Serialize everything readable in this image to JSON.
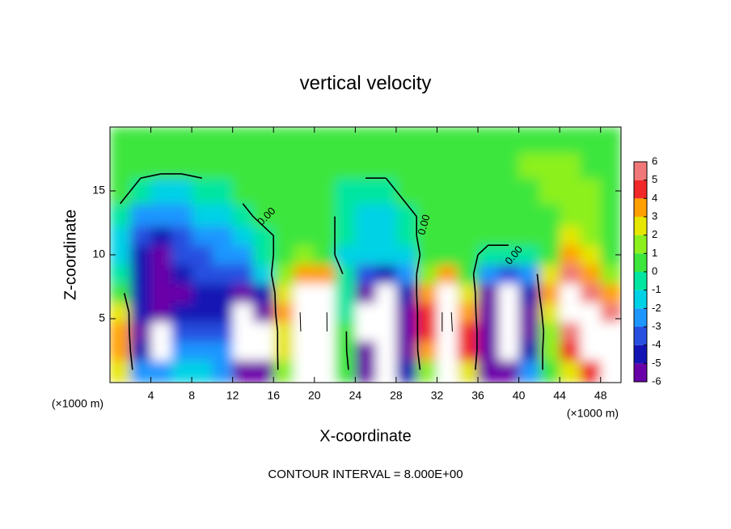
{
  "chart_data": {
    "type": "contour",
    "title": "vertical velocity",
    "x_label": "X-coordinate",
    "y_label": "Z-coordinate",
    "x_unit_label": "(×1000 m)",
    "footer": "CONTOUR INTERVAL = 8.000E+00",
    "contour_label": "0.00",
    "xlim": [
      0,
      50
    ],
    "ylim": [
      0,
      20
    ],
    "xticks": [
      4,
      8,
      12,
      16,
      20,
      24,
      28,
      32,
      36,
      40,
      44,
      48
    ],
    "yticks": [
      5,
      10,
      15
    ],
    "x": [
      1,
      3,
      5,
      7,
      9,
      11,
      13,
      15,
      17,
      19,
      21,
      23,
      25,
      27,
      29,
      31,
      33,
      35,
      37,
      39,
      41,
      43,
      45,
      47,
      49
    ],
    "z": [
      1,
      2.5,
      4,
      5.5,
      7,
      8.5,
      10,
      11.5,
      13,
      15,
      17,
      19
    ],
    "values": [
      [
        3,
        -2,
        -2,
        -1.5,
        -1.5,
        -2,
        -5,
        -5,
        2,
        7,
        7,
        1,
        -5,
        -7,
        -4,
        2,
        7,
        3,
        -5,
        -6,
        -2,
        1,
        3,
        5,
        7
      ],
      [
        4,
        -4,
        -7,
        -2,
        -2,
        -2.5,
        -7,
        -7,
        3,
        8,
        8,
        0.5,
        -6,
        -8,
        -5,
        4,
        8,
        5,
        -6,
        -8,
        -4,
        2,
        5,
        7,
        8
      ],
      [
        4,
        -5,
        -8,
        -3,
        -3,
        -3,
        -8,
        -7,
        3,
        9,
        9,
        0.5,
        -7,
        -8,
        -6,
        5,
        9,
        5,
        -6,
        -8,
        -5,
        2,
        6,
        8,
        7
      ],
      [
        3,
        -4,
        -6,
        -4,
        -4,
        -4,
        -8,
        -6,
        4,
        9,
        9,
        0,
        -7,
        -8,
        -6,
        5,
        9,
        4,
        -6,
        -8,
        -5,
        3,
        7,
        8,
        6
      ],
      [
        1,
        -4,
        -5,
        -5,
        -4,
        -4,
        -6,
        -4,
        3,
        8,
        8,
        0,
        -5,
        -7,
        -4,
        4,
        8,
        3,
        -5,
        -7,
        -4,
        4,
        8,
        6,
        4
      ],
      [
        0,
        -4,
        -5,
        -4,
        -3.5,
        -3.5,
        -3,
        -1,
        1.5,
        4,
        4,
        -0.5,
        -3,
        -4,
        -2,
        2,
        4,
        1,
        -2.5,
        -3,
        -2,
        3,
        6,
        4,
        2
      ],
      [
        -1,
        -4.5,
        -5,
        -3.5,
        -3,
        -2.5,
        -2,
        -0.5,
        0.5,
        1.5,
        1,
        -1,
        -1.5,
        -1.5,
        -1,
        0.5,
        0.5,
        0.5,
        -0.5,
        -0.5,
        0,
        1,
        4,
        3,
        1
      ],
      [
        -1,
        -3.5,
        -4,
        -3,
        -2.5,
        -2,
        -1.5,
        -0.5,
        0.5,
        0.5,
        0.5,
        -0.5,
        -1.5,
        -1.5,
        -0.5,
        0.5,
        0.5,
        0.5,
        0.5,
        0.5,
        0.5,
        1,
        3,
        2,
        1
      ],
      [
        -0.5,
        -2,
        -2.5,
        -2,
        -1.5,
        -1,
        -0.5,
        0.5,
        0.5,
        0.5,
        0.5,
        -0.5,
        -1.5,
        -1,
        -0.5,
        0.5,
        0.5,
        0.5,
        0.5,
        1,
        1,
        1,
        1.5,
        1.5,
        1
      ],
      [
        0.5,
        -0.5,
        -1,
        -1,
        -0.5,
        0,
        0.5,
        0.5,
        0.5,
        0.5,
        0.5,
        0,
        -0.5,
        -0.5,
        0.5,
        0.5,
        0.5,
        1,
        1,
        1,
        1,
        1.5,
        1.5,
        1.5,
        1
      ],
      [
        0.5,
        0.5,
        0.5,
        0.5,
        0.5,
        0.5,
        0.5,
        0.5,
        0.5,
        0.5,
        0.5,
        0.5,
        0.5,
        0.5,
        0.5,
        0.5,
        1,
        1,
        1,
        1,
        1.5,
        1.5,
        1.5,
        1,
        0.5
      ],
      [
        0.5,
        0.5,
        0.5,
        0.5,
        0.5,
        0.5,
        0.5,
        0.5,
        0.5,
        0.5,
        0.5,
        0.5,
        0.5,
        0.5,
        0.5,
        0.5,
        1,
        1,
        1,
        1,
        1,
        1,
        1,
        1,
        0.5
      ]
    ],
    "colorbar": {
      "levels": [
        -6,
        -5,
        -4,
        -3,
        -2,
        -1,
        0,
        1,
        2,
        3,
        4,
        5,
        6
      ],
      "colors": [
        "#6a00a8",
        "#1414b4",
        "#2850e0",
        "#1e96ff",
        "#00d2e6",
        "#00e6a0",
        "#3ce63c",
        "#8cf01e",
        "#e6e600",
        "#ffa000",
        "#f02828",
        "#f07878"
      ]
    },
    "contour_levels": [
      -8,
      0,
      8
    ]
  }
}
